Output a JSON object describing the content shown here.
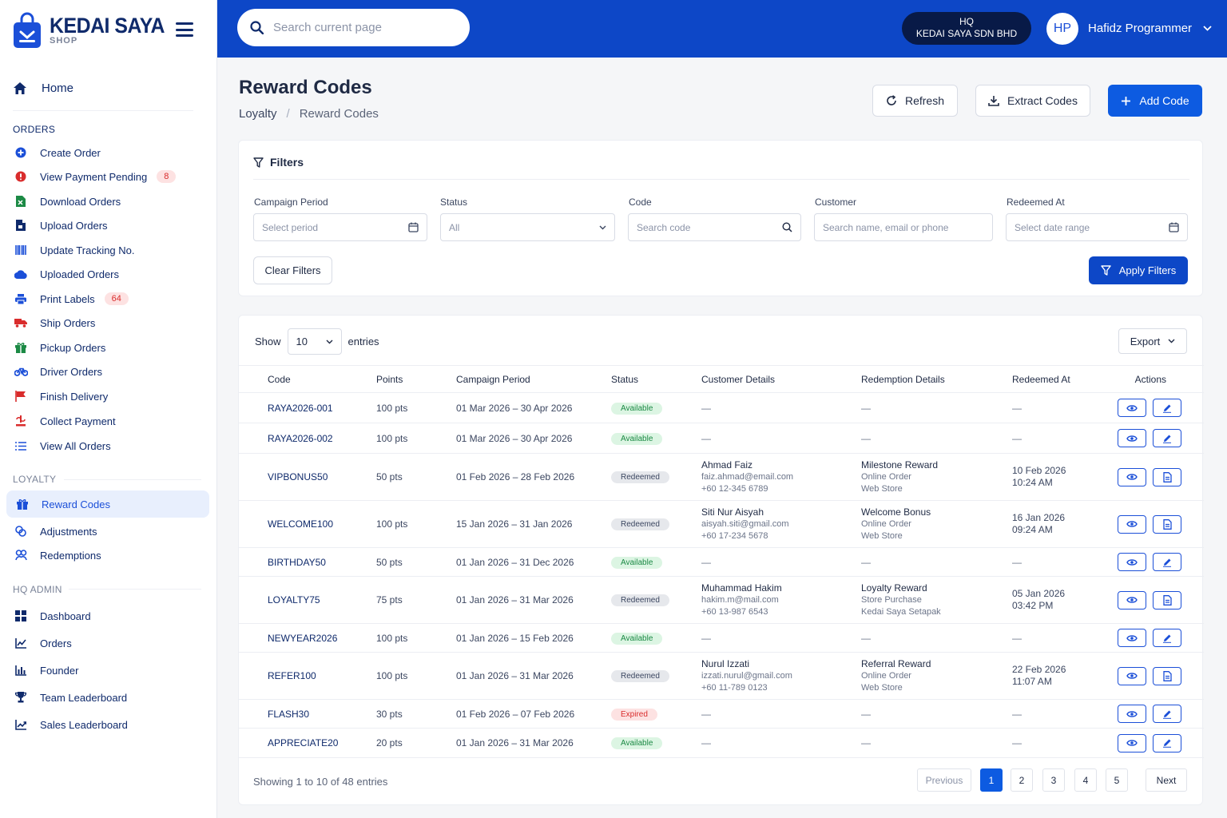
{
  "brand": {
    "title": "KEDAI SAYA",
    "subtitle": "SHOP"
  },
  "search": {
    "placeholder": "Search current page"
  },
  "org": {
    "line1": "HQ",
    "line2": "KEDAI SAYA SDN BHD"
  },
  "user": {
    "initials": "HP",
    "name": "Hafidz Programmer"
  },
  "nav": {
    "home": "Home",
    "orders_title": "ORDERS",
    "orders": [
      {
        "label": "Create Order",
        "icon": "plus-circle-icon",
        "color": "#1b4fd8"
      },
      {
        "label": "View Payment Pending",
        "icon": "alert-circle-icon",
        "color": "#d92c2c",
        "badge": "8"
      },
      {
        "label": "Download Orders",
        "icon": "excel-file-icon",
        "color": "#1c8a45"
      },
      {
        "label": "Upload Orders",
        "icon": "file-icon",
        "color": "#0f2a6b"
      },
      {
        "label": "Update Tracking No.",
        "icon": "barcode-icon",
        "color": "#1b4fd8"
      },
      {
        "label": "Uploaded Orders",
        "icon": "cloud-icon",
        "color": "#1b4fd8"
      },
      {
        "label": "Print Labels",
        "icon": "printer-icon",
        "color": "#1b4fd8",
        "badge": "64"
      },
      {
        "label": "Ship Orders",
        "icon": "truck-icon",
        "color": "#d92c2c"
      },
      {
        "label": "Pickup Orders",
        "icon": "gift-box-icon",
        "color": "#1c8a45"
      },
      {
        "label": "Driver Orders",
        "icon": "bicycle-icon",
        "color": "#1b4fd8"
      },
      {
        "label": "Finish Delivery",
        "icon": "flag-icon",
        "color": "#d92c2c"
      },
      {
        "label": "Collect Payment",
        "icon": "dollar-icon",
        "color": "#d92c2c"
      },
      {
        "label": "View All Orders",
        "icon": "list-icon",
        "color": "#1b4fd8"
      }
    ],
    "loyalty_title": "LOYALTY",
    "loyalty": [
      {
        "label": "Reward Codes",
        "icon": "gift-icon",
        "color": "#1b4fd8",
        "active": true
      },
      {
        "label": "Adjustments",
        "icon": "adjust-icon",
        "color": "#1b4fd8"
      },
      {
        "label": "Redemptions",
        "icon": "redeem-icon",
        "color": "#1b4fd8"
      }
    ],
    "hq_title": "HQ ADMIN",
    "hq": [
      {
        "label": "Dashboard",
        "icon": "grid-icon",
        "color": "#0f2a6b"
      },
      {
        "label": "Orders",
        "icon": "line-chart-icon",
        "color": "#0f2a6b"
      },
      {
        "label": "Founder",
        "icon": "bar-chart-icon",
        "color": "#0f2a6b"
      },
      {
        "label": "Team Leaderboard",
        "icon": "trophy-icon",
        "color": "#0f2a6b"
      },
      {
        "label": "Sales Leaderboard",
        "icon": "trend-icon",
        "color": "#0f2a6b"
      }
    ]
  },
  "page": {
    "title": "Reward Codes",
    "breadcrumb": [
      "Loyalty",
      "Reward Codes"
    ],
    "buttons": {
      "refresh": "Refresh",
      "extract": "Extract Codes",
      "add": "Add Code"
    }
  },
  "filters": {
    "title": "Filters",
    "campaign_label": "Campaign Period",
    "campaign_placeholder": "Select period",
    "status_label": "Status",
    "status_value": "All",
    "code_label": "Code",
    "code_placeholder": "Search code",
    "customer_label": "Customer",
    "customer_placeholder": "Search name, email or phone",
    "redeemed_label": "Redeemed At",
    "redeemed_placeholder": "Select date range",
    "clear": "Clear Filters",
    "apply": "Apply Filters"
  },
  "table": {
    "show": "Show",
    "entries_value": "10",
    "entries": "entries",
    "export": "Export",
    "headers": [
      "Code",
      "Points",
      "Campaign Period",
      "Status",
      "Customer Details",
      "Redemption Details",
      "Redeemed At",
      "Actions"
    ],
    "rows": [
      {
        "code": "RAYA2026-001",
        "points": "100 pts",
        "period": "01 Mar 2026 – 30 Apr 2026",
        "status": "Available",
        "kind": "available",
        "customer": null,
        "redemption": null,
        "at": null,
        "action2": "edit"
      },
      {
        "code": "RAYA2026-002",
        "points": "100 pts",
        "period": "01 Mar 2026 – 30 Apr 2026",
        "status": "Available",
        "kind": "available",
        "customer": null,
        "redemption": null,
        "at": null,
        "action2": "edit"
      },
      {
        "code": "VIPBONUS50",
        "points": "50 pts",
        "period": "01 Feb 2026 – 28 Feb 2026",
        "status": "Redeemed",
        "kind": "redeemed",
        "customer": [
          "Ahmad Faiz",
          "faiz.ahmad@email.com",
          "+60 12-345 6789"
        ],
        "redemption": [
          "Milestone Reward",
          "Online Order",
          "Web Store"
        ],
        "at": [
          "10 Feb 2026",
          "10:24 AM"
        ],
        "action2": "doc"
      },
      {
        "code": "WELCOME100",
        "points": "100 pts",
        "period": "15 Jan 2026 – 31 Jan 2026",
        "status": "Redeemed",
        "kind": "redeemed",
        "customer": [
          "Siti Nur Aisyah",
          "aisyah.siti@gmail.com",
          "+60 17-234 5678"
        ],
        "redemption": [
          "Welcome Bonus",
          "Online Order",
          "Web Store"
        ],
        "at": [
          "16 Jan 2026",
          "09:24 AM"
        ],
        "action2": "doc"
      },
      {
        "code": "BIRTHDAY50",
        "points": "50 pts",
        "period": "01 Jan 2026 – 31 Dec 2026",
        "status": "Available",
        "kind": "available",
        "customer": null,
        "redemption": null,
        "at": null,
        "action2": "edit"
      },
      {
        "code": "LOYALTY75",
        "points": "75 pts",
        "period": "01 Jan 2026 – 31 Mar 2026",
        "status": "Redeemed",
        "kind": "redeemed",
        "customer": [
          "Muhammad Hakim",
          "hakim.m@mail.com",
          "+60 13-987 6543"
        ],
        "redemption": [
          "Loyalty Reward",
          "Store Purchase",
          "Kedai Saya Setapak"
        ],
        "at": [
          "05 Jan 2026",
          "03:42 PM"
        ],
        "action2": "doc"
      },
      {
        "code": "NEWYEAR2026",
        "points": "100 pts",
        "period": "01 Jan 2026 – 15 Feb 2026",
        "status": "Available",
        "kind": "available",
        "customer": null,
        "redemption": null,
        "at": null,
        "action2": "edit"
      },
      {
        "code": "REFER100",
        "points": "100 pts",
        "period": "01 Jan 2026 – 31 Mar 2026",
        "status": "Redeemed",
        "kind": "redeemed",
        "customer": [
          "Nurul Izzati",
          "izzati.nurul@gmail.com",
          "+60 11-789 0123"
        ],
        "redemption": [
          "Referral Reward",
          "Online Order",
          "Web Store"
        ],
        "at": [
          "22 Feb 2026",
          "11:07 AM"
        ],
        "action2": "doc"
      },
      {
        "code": "FLASH30",
        "points": "30 pts",
        "period": "01 Feb 2026 – 07 Feb 2026",
        "status": "Expired",
        "kind": "expired",
        "customer": null,
        "redemption": null,
        "at": null,
        "action2": "edit"
      },
      {
        "code": "APPRECIATE20",
        "points": "20 pts",
        "period": "01 Jan 2026 – 31 Mar 2026",
        "status": "Available",
        "kind": "available",
        "customer": null,
        "redemption": null,
        "at": null,
        "action2": "edit"
      }
    ],
    "empty": "—",
    "showing": "Showing 1 to 10 of 48 entries",
    "pagination": {
      "prev": "Previous",
      "pages": [
        "1",
        "2",
        "3",
        "4",
        "5"
      ],
      "next": "Next"
    }
  },
  "colors": {
    "primary": "#0d5be1",
    "topbar": "#0d47c7",
    "navy": "#0f2a6b"
  }
}
